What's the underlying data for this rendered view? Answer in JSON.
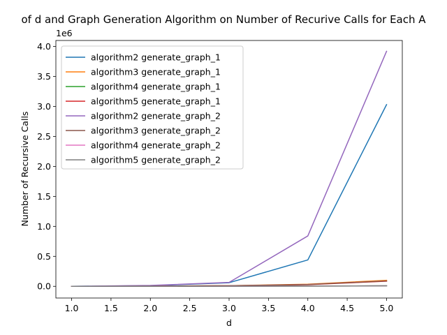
{
  "chart_data": {
    "type": "line",
    "title": "of d and Graph Generation Algorithm on Number of Recurive Calls for Each A",
    "xlabel": "d",
    "ylabel": "Number of Recursive Calls",
    "y_offset_label": "1e6",
    "x": [
      1.0,
      2.0,
      3.0,
      4.0,
      5.0
    ],
    "xlim": [
      0.8,
      5.2
    ],
    "ylim": [
      -0.195,
      4.1
    ],
    "xticks": [
      "1.0",
      "1.5",
      "2.0",
      "2.5",
      "3.0",
      "3.5",
      "4.0",
      "4.5",
      "5.0"
    ],
    "xtick_values": [
      1.0,
      1.5,
      2.0,
      2.5,
      3.0,
      3.5,
      4.0,
      4.5,
      5.0
    ],
    "yticks": [
      "0.0",
      "0.5",
      "1.0",
      "1.5",
      "2.0",
      "2.5",
      "3.0",
      "3.5",
      "4.0"
    ],
    "ytick_values": [
      0.0,
      0.5,
      1.0,
      1.5,
      2.0,
      2.5,
      3.0,
      3.5,
      4.0
    ],
    "grid": false,
    "legend_position": "top-left",
    "series": [
      {
        "name": "algorithm2 generate_graph_1",
        "color": "#1f77b4",
        "values": [
          0.0,
          0.01,
          0.06,
          0.44,
          3.03
        ]
      },
      {
        "name": "algorithm3 generate_graph_1",
        "color": "#ff7f0e",
        "values": [
          0.0,
          0.003,
          0.01,
          0.035,
          0.1
        ]
      },
      {
        "name": "algorithm4 generate_graph_1",
        "color": "#2ca02c",
        "values": [
          0.0,
          0.0,
          0.002,
          0.004,
          0.008
        ]
      },
      {
        "name": "algorithm5 generate_graph_1",
        "color": "#d62728",
        "values": [
          0.0,
          0.002,
          0.008,
          0.028,
          0.085
        ]
      },
      {
        "name": "algorithm2 generate_graph_2",
        "color": "#9467bd",
        "values": [
          0.0,
          0.015,
          0.065,
          0.84,
          3.92
        ]
      },
      {
        "name": "algorithm3 generate_graph_2",
        "color": "#8c564b",
        "values": [
          0.0,
          0.003,
          0.01,
          0.03,
          0.09
        ]
      },
      {
        "name": "algorithm4 generate_graph_2",
        "color": "#e377c2",
        "values": [
          0.0,
          0.0,
          0.002,
          0.004,
          0.008
        ]
      },
      {
        "name": "algorithm5 generate_graph_2",
        "color": "#7f7f7f",
        "values": [
          0.0,
          0.0,
          0.002,
          0.004,
          0.008
        ]
      }
    ]
  }
}
